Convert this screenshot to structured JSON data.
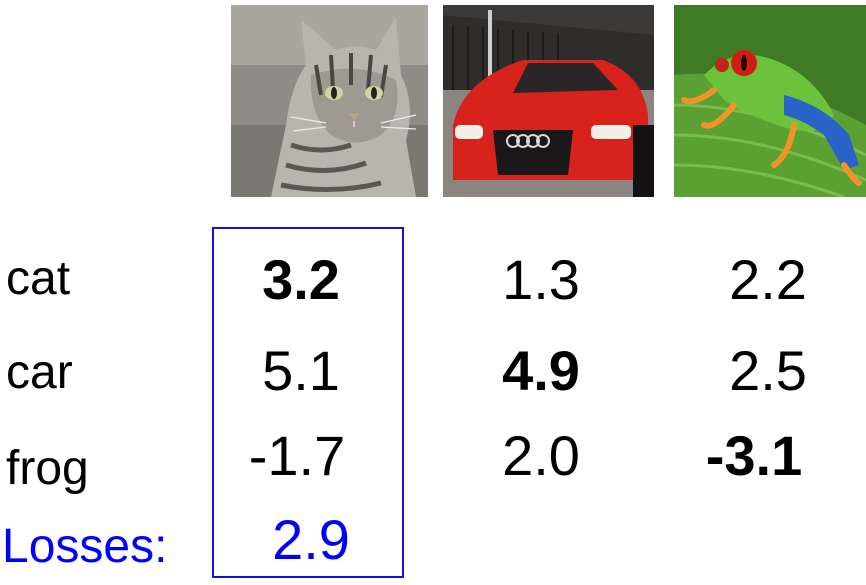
{
  "images": [
    {
      "name": "cat-photo",
      "icon": "cat-photo-icon"
    },
    {
      "name": "car-photo",
      "icon": "car-photo-icon"
    },
    {
      "name": "frog-photo",
      "icon": "frog-photo-icon"
    }
  ],
  "rows": [
    {
      "label": "cat",
      "scores": [
        "3.2",
        "1.3",
        "2.2"
      ],
      "bold": [
        true,
        false,
        false
      ]
    },
    {
      "label": "car",
      "scores": [
        "5.1",
        "4.9",
        "2.5"
      ],
      "bold": [
        false,
        true,
        false
      ]
    },
    {
      "label": "frog",
      "scores": [
        "-1.7",
        "2.0",
        "-3.1"
      ],
      "bold": [
        false,
        false,
        true
      ]
    }
  ],
  "losses": {
    "label": "Losses:",
    "values": [
      "2.9"
    ]
  },
  "colors": {
    "accent": "#0000ff",
    "box": "#1010e0",
    "text": "#000000"
  },
  "highlight": {
    "column": 0
  }
}
